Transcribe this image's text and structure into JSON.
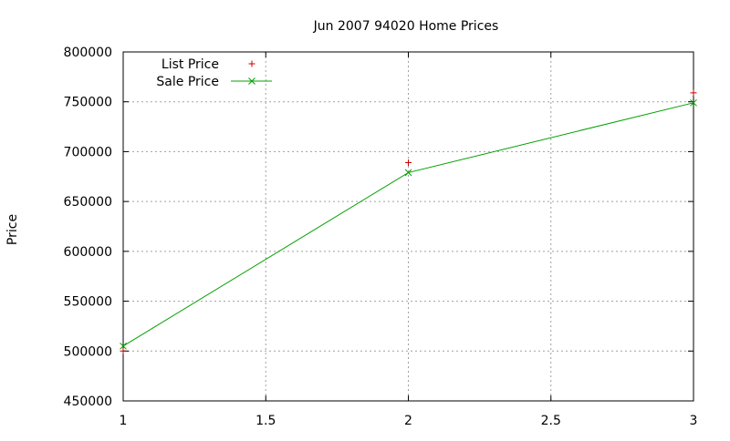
{
  "chart_data": {
    "type": "line",
    "title": "Jun 2007 94020 Home Prices",
    "xlabel": "",
    "ylabel": "Price",
    "xlim": [
      1,
      3
    ],
    "ylim": [
      450000,
      800000
    ],
    "xticks": [
      1,
      1.5,
      2,
      2.5,
      3
    ],
    "xtick_labels": [
      "1",
      "1.5",
      "2",
      "2.5",
      "3"
    ],
    "yticks": [
      450000,
      500000,
      550000,
      600000,
      650000,
      700000,
      750000,
      800000
    ],
    "ytick_labels": [
      "450000",
      "500000",
      "550000",
      "600000",
      "650000",
      "700000",
      "750000",
      "800000"
    ],
    "grid": true,
    "legend_position": "top-left",
    "series": [
      {
        "name": "List Price",
        "style": "points",
        "marker": "plus",
        "color": "#cc0000",
        "x": [
          1,
          2,
          3
        ],
        "y": [
          500000,
          689000,
          759000
        ]
      },
      {
        "name": "Sale Price",
        "style": "linespoints",
        "marker": "cross",
        "color": "#00a000",
        "x": [
          1,
          2,
          3
        ],
        "y": [
          505000,
          679000,
          749000
        ]
      }
    ]
  }
}
